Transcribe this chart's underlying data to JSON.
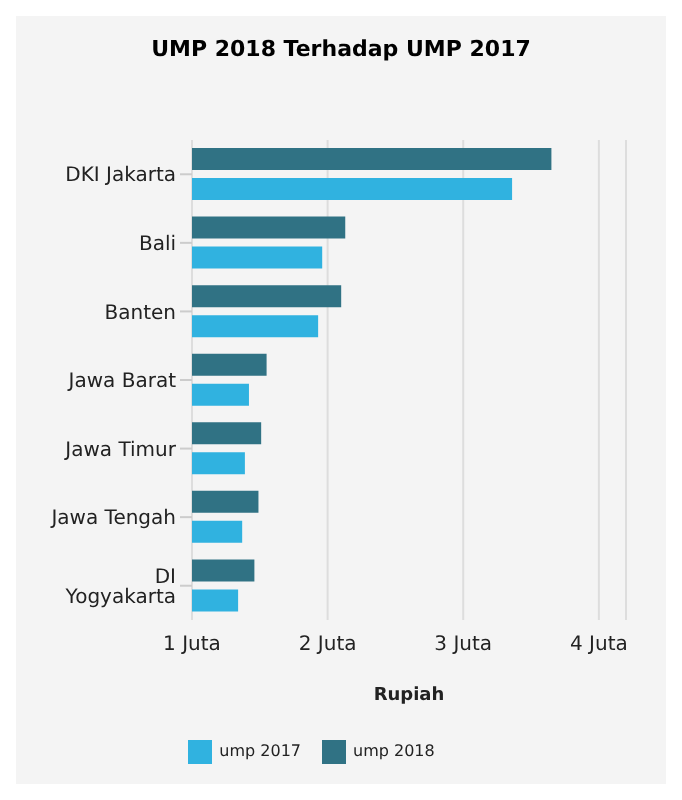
{
  "chart_data": {
    "type": "bar",
    "orientation": "horizontal",
    "title": "UMP 2018 Terhadap UMP 2017",
    "xlabel": "Rupiah",
    "categories": [
      "DKI Jakarta",
      "Bali",
      "Banten",
      "Jawa Barat",
      "Jawa Timur",
      "Jawa Tengah",
      "DI Yogyakarta"
    ],
    "series": [
      {
        "name": "ump 2018",
        "color": "#307284",
        "values": [
          3.65,
          2.13,
          2.1,
          1.55,
          1.51,
          1.49,
          1.46
        ]
      },
      {
        "name": "ump 2017",
        "color": "#30b2e0",
        "values": [
          3.36,
          1.96,
          1.93,
          1.42,
          1.39,
          1.37,
          1.34
        ]
      }
    ],
    "xlim": [
      1,
      4.2
    ],
    "xticks": [
      {
        "value": 1,
        "label": "1 Juta"
      },
      {
        "value": 2,
        "label": "2 Juta"
      },
      {
        "value": 3,
        "label": "3 Juta"
      },
      {
        "value": 4,
        "label": "4 Juta"
      }
    ],
    "grid": "x",
    "legend": "bottom"
  }
}
